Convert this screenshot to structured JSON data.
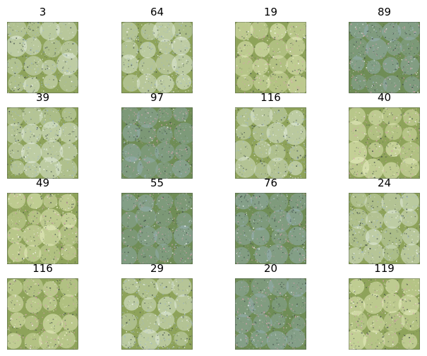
{
  "figure": {
    "tiles": [
      {
        "label": "3",
        "tone": "light"
      },
      {
        "label": "64",
        "tone": "light"
      },
      {
        "label": "19",
        "tone": "warm"
      },
      {
        "label": "89",
        "tone": "dark"
      },
      {
        "label": "39",
        "tone": "light"
      },
      {
        "label": "97",
        "tone": "dark"
      },
      {
        "label": "116",
        "tone": "light"
      },
      {
        "label": "40",
        "tone": "warm"
      },
      {
        "label": "49",
        "tone": "warm"
      },
      {
        "label": "55",
        "tone": "dark"
      },
      {
        "label": "76",
        "tone": "dark"
      },
      {
        "label": "24",
        "tone": "light"
      },
      {
        "label": "116",
        "tone": "warm"
      },
      {
        "label": "29",
        "tone": "light"
      },
      {
        "label": "20",
        "tone": "dark"
      },
      {
        "label": "119",
        "tone": "warm"
      }
    ],
    "colors": {
      "green": "#6f8d56",
      "olive": "#8ea35a",
      "pale": "#e6efe2",
      "blue": "#9fb7c8",
      "pink": "#d7a2b0",
      "dark": "#3e4a46"
    }
  }
}
